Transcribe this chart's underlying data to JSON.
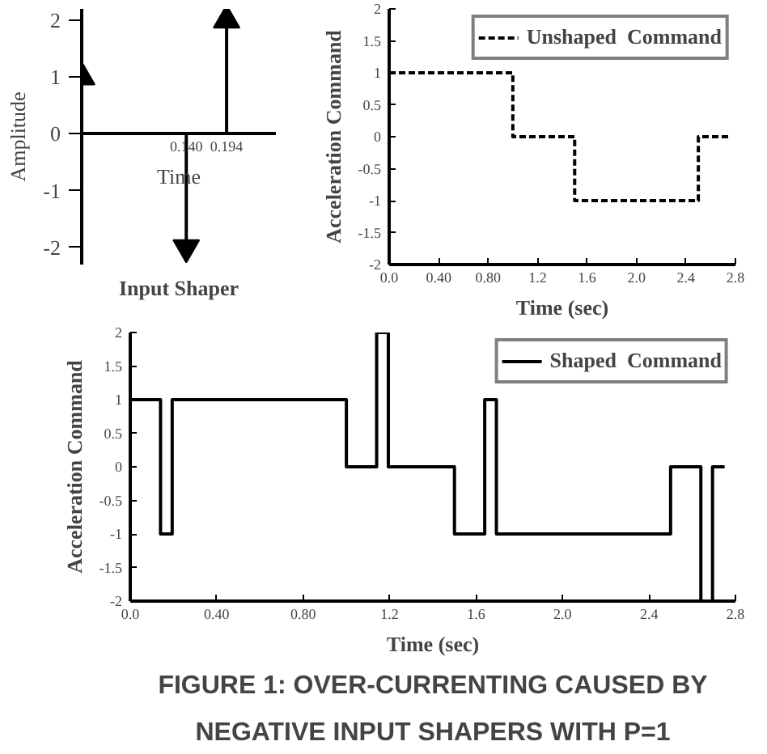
{
  "chart_data": [
    {
      "type": "lollipop",
      "title": "Input Shaper",
      "xlabel": "Time",
      "ylabel": "Amplitude",
      "x": [
        0,
        0.14,
        0.194
      ],
      "values": [
        1,
        -2,
        2
      ],
      "color": "#000000",
      "marker": "triangle",
      "xlim": [
        0,
        0.26
      ],
      "ylim": [
        -2.3,
        2.2
      ],
      "xticks": [
        {
          "value": 0.14,
          "label": "0.140"
        },
        {
          "value": 0.194,
          "label": "0.194"
        }
      ],
      "yticks": [
        -2,
        -1,
        0,
        1,
        2
      ],
      "grid": false
    },
    {
      "type": "step",
      "xlabel": "Time (sec)",
      "ylabel": "Acceleration Command",
      "line_style": "dashed",
      "legend": "top right",
      "grid": false,
      "series": [
        {
          "name": "Unshaped  Command",
          "color": "#000000",
          "x": [
            0,
            1.0,
            1.5,
            2.5,
            2.75
          ],
          "values": [
            1,
            0,
            -1,
            0,
            0
          ]
        }
      ],
      "xlim": [
        0,
        2.8
      ],
      "ylim": [
        -2,
        2
      ],
      "xticks": [
        {
          "value": 0,
          "label": "0.0"
        },
        {
          "value": 0.4,
          "label": "0.40"
        },
        {
          "value": 0.8,
          "label": "0.80"
        },
        1.2,
        1.6,
        {
          "value": 2,
          "label": "2.0"
        },
        2.4,
        2.8
      ],
      "yticks": [
        -2,
        -1.5,
        -1,
        -0.5,
        0,
        0.5,
        1,
        1.5,
        2
      ]
    },
    {
      "type": "step",
      "xlabel": "Time (sec)",
      "ylabel": "Acceleration Command",
      "line_style": "solid",
      "legend": "top right",
      "grid": false,
      "series": [
        {
          "name": "Shaped  Command",
          "color": "#000000",
          "x": [
            0,
            0.14,
            0.194,
            1.0,
            1.14,
            1.194,
            1.5,
            1.64,
            1.694,
            2.5,
            2.64,
            2.694,
            2.75
          ],
          "values": [
            1,
            -1,
            1,
            0,
            2,
            0,
            -1,
            1,
            -1,
            0,
            -2,
            0,
            0
          ]
        }
      ],
      "xlim": [
        0,
        2.8
      ],
      "ylim": [
        -2,
        2
      ],
      "xticks": [
        {
          "value": 0,
          "label": "0.0"
        },
        {
          "value": 0.4,
          "label": "0.40"
        },
        {
          "value": 0.8,
          "label": "0.80"
        },
        1.2,
        1.6,
        {
          "value": 2,
          "label": "2.0"
        },
        2.4,
        2.8
      ],
      "yticks": [
        -2,
        -1.5,
        -1,
        -0.5,
        0,
        0.5,
        1,
        1.5,
        2
      ],
      "annotations": [
        "FIGURE 1: OVER-CURRENTING CAUSED BY",
        "NEGATIVE INPUT SHAPERS WITH P=1"
      ]
    }
  ]
}
